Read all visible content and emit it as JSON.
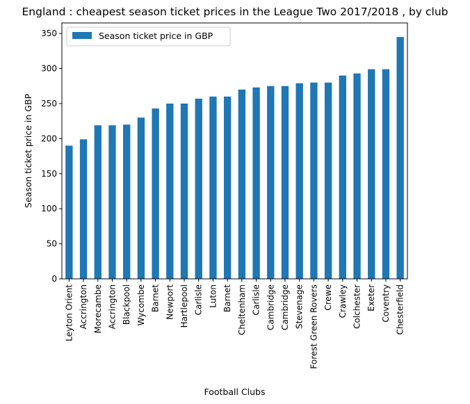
{
  "chart_data": {
    "type": "bar",
    "title": "England : cheapest season ticket prices in the League Two 2017/2018 , by club",
    "xlabel": "Football Clubs",
    "ylabel": "Season ticket price in GBP",
    "ylim": [
      0,
      365
    ],
    "yticks": [
      0,
      50,
      100,
      150,
      200,
      250,
      300,
      350
    ],
    "legend_position": "top-left",
    "grid": false,
    "colors": {
      "bar": "#1f77b4"
    },
    "categories": [
      "Leyton Orient",
      "Accrington",
      "Morecambe",
      "Accrington",
      "Blackpool",
      "Wycombe",
      "Barnet",
      "Newport",
      "Hartlepool",
      "Carlisle",
      "Luton",
      "Barnet",
      "Cheltenham",
      "Carlisle",
      "Cambridge",
      "Cambridge",
      "Stevenage",
      "Forest Green Rovers",
      "Crewe",
      "Crawley",
      "Colchester",
      "Exeter",
      "Coventry",
      "Chesterfield"
    ],
    "series": [
      {
        "name": "Season ticket price in GBP",
        "values": [
          190,
          199,
          219,
          219,
          220,
          230,
          243,
          250,
          250,
          257,
          260,
          260,
          270,
          273,
          275,
          275,
          279,
          280,
          280,
          290,
          293,
          299,
          299,
          345
        ]
      }
    ]
  }
}
